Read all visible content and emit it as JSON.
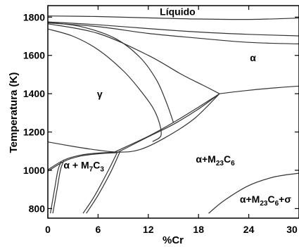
{
  "chart_data": {
    "type": "line",
    "title": "",
    "xlabel": "%Cr",
    "ylabel": "Temperatura (K)",
    "xlim": [
      0,
      30
    ],
    "ylim": [
      750,
      1860
    ],
    "x_ticks": [
      0,
      6,
      12,
      18,
      24,
      30
    ],
    "y_ticks": [
      800,
      1000,
      1200,
      1400,
      1600,
      1800
    ],
    "grid": false,
    "colors": {
      "lines": "#333333",
      "axes": "#000000"
    },
    "region_labels": [
      {
        "id": "liquido",
        "text": "Líquido",
        "x": 15.5,
        "y": 1810
      },
      {
        "id": "alpha",
        "text": "α",
        "x": 24.5,
        "y": 1570
      },
      {
        "id": "gamma",
        "text": "γ",
        "x": 6.2,
        "y": 1380
      },
      {
        "id": "alpha-m23c6",
        "parts": [
          "α+M",
          "23",
          "C",
          "6"
        ],
        "x": 20.0,
        "y": 1040
      },
      {
        "id": "alpha-m7c3",
        "parts": [
          "α + M",
          "7",
          "C",
          "3"
        ],
        "x": 4.3,
        "y": 1010
      },
      {
        "id": "alpha-m23c6-sigma",
        "parts": [
          "α+M",
          "23",
          "C",
          "6",
          "+σ"
        ],
        "x": 26.0,
        "y": 830
      }
    ],
    "series": [
      {
        "points": [
          [
            0,
            1806
          ],
          [
            6,
            1803
          ],
          [
            12,
            1796
          ],
          [
            18,
            1790
          ],
          [
            24,
            1788
          ],
          [
            30,
            1795
          ]
        ]
      },
      {
        "points": [
          [
            0,
            1775
          ],
          [
            6,
            1760
          ],
          [
            12,
            1740
          ],
          [
            18,
            1722
          ],
          [
            24,
            1710
          ],
          [
            30,
            1702
          ]
        ]
      },
      {
        "points": [
          [
            0,
            1770
          ],
          [
            6,
            1750
          ],
          [
            12,
            1715
          ],
          [
            18,
            1690
          ],
          [
            24,
            1668
          ],
          [
            30,
            1660
          ]
        ]
      },
      {
        "points": [
          [
            0,
            1773
          ],
          [
            4,
            1750
          ],
          [
            8,
            1690
          ],
          [
            11,
            1590
          ],
          [
            13,
            1470
          ],
          [
            14.2,
            1350
          ],
          [
            15,
            1250
          ]
        ]
      },
      {
        "points": [
          [
            0,
            1738
          ],
          [
            3,
            1700
          ],
          [
            6,
            1630
          ],
          [
            9,
            1520
          ],
          [
            11,
            1420
          ],
          [
            12.5,
            1330
          ],
          [
            13.3,
            1250
          ],
          [
            13.5,
            1180
          ],
          [
            12.5,
            1150
          ]
        ]
      },
      {
        "points": [
          [
            0,
            1148
          ],
          [
            3,
            1125
          ],
          [
            6,
            1105
          ],
          [
            8.6,
            1095
          ],
          [
            11,
            1108
          ],
          [
            14,
            1170
          ],
          [
            17.5,
            1270
          ],
          [
            20.5,
            1400
          ]
        ]
      },
      {
        "points": [
          [
            0,
            1765
          ],
          [
            6,
            1715
          ],
          [
            12,
            1600
          ],
          [
            16,
            1500
          ],
          [
            18.5,
            1445
          ],
          [
            20.5,
            1400
          ]
        ]
      },
      {
        "points": [
          [
            8.4,
            1095
          ],
          [
            12,
            1175
          ],
          [
            15,
            1240
          ],
          [
            18,
            1320
          ],
          [
            20.5,
            1400
          ]
        ]
      },
      {
        "points": [
          [
            8.0,
            1096
          ],
          [
            12,
            1178
          ],
          [
            15,
            1250
          ],
          [
            18,
            1330
          ],
          [
            20.5,
            1400
          ]
        ]
      },
      {
        "points": [
          [
            20.5,
            1400
          ],
          [
            24,
            1418
          ],
          [
            27,
            1430
          ],
          [
            30,
            1440
          ]
        ]
      },
      {
        "points": [
          [
            0,
            1003
          ],
          [
            2,
            1055
          ],
          [
            4,
            1080
          ],
          [
            6,
            1090
          ],
          [
            8.5,
            1095
          ]
        ]
      },
      {
        "points": [
          [
            0,
            995
          ],
          [
            2,
            1048
          ],
          [
            4,
            1075
          ],
          [
            6,
            1086
          ],
          [
            8.2,
            1092
          ]
        ]
      },
      {
        "points": [
          [
            0.3,
            775
          ],
          [
            0.8,
            900
          ],
          [
            1.2,
            1000
          ],
          [
            1.6,
            1045
          ]
        ]
      },
      {
        "points": [
          [
            0.6,
            775
          ],
          [
            1.1,
            900
          ],
          [
            1.5,
            1000
          ],
          [
            1.9,
            1050
          ]
        ]
      },
      {
        "points": [
          [
            4.2,
            775
          ],
          [
            5.5,
            860
          ],
          [
            7,
            980
          ],
          [
            8.3,
            1094
          ]
        ]
      },
      {
        "points": [
          [
            4.6,
            775
          ],
          [
            6,
            870
          ],
          [
            7.5,
            990
          ],
          [
            8.6,
            1095
          ]
        ]
      },
      {
        "points": [
          [
            19.2,
            775
          ],
          [
            21,
            840
          ],
          [
            24,
            920
          ],
          [
            27,
            965
          ],
          [
            30,
            985
          ]
        ]
      }
    ]
  }
}
